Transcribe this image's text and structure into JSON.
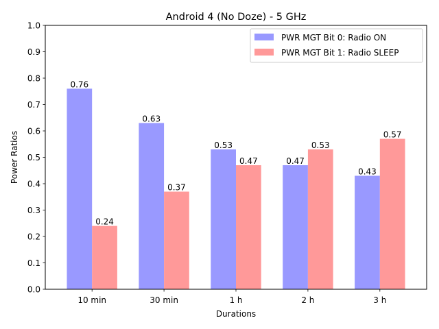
{
  "chart_data": {
    "type": "bar",
    "title": "Android 4 (No Doze) - 5 GHz",
    "xlabel": "Durations",
    "ylabel": "Power Ratios",
    "ylim": [
      0,
      1.0
    ],
    "yticks": [
      "0.0",
      "0.1",
      "0.2",
      "0.3",
      "0.4",
      "0.5",
      "0.6",
      "0.7",
      "0.8",
      "0.9",
      "1.0"
    ],
    "categories": [
      "10 min",
      "30 min",
      "1 h",
      "2 h",
      "3 h"
    ],
    "series": [
      {
        "name": "PWR MGT Bit 0: Radio ON",
        "color": "#9999ff",
        "values": [
          0.76,
          0.63,
          0.53,
          0.47,
          0.43
        ],
        "labels": [
          "0.76",
          "0.63",
          "0.53",
          "0.47",
          "0.43"
        ]
      },
      {
        "name": "PWR MGT Bit 1: Radio SLEEP",
        "color": "#ff9999",
        "values": [
          0.24,
          0.37,
          0.47,
          0.53,
          0.57
        ],
        "labels": [
          "0.24",
          "0.37",
          "0.47",
          "0.53",
          "0.57"
        ]
      }
    ],
    "legend": "top-right",
    "grid": false
  }
}
